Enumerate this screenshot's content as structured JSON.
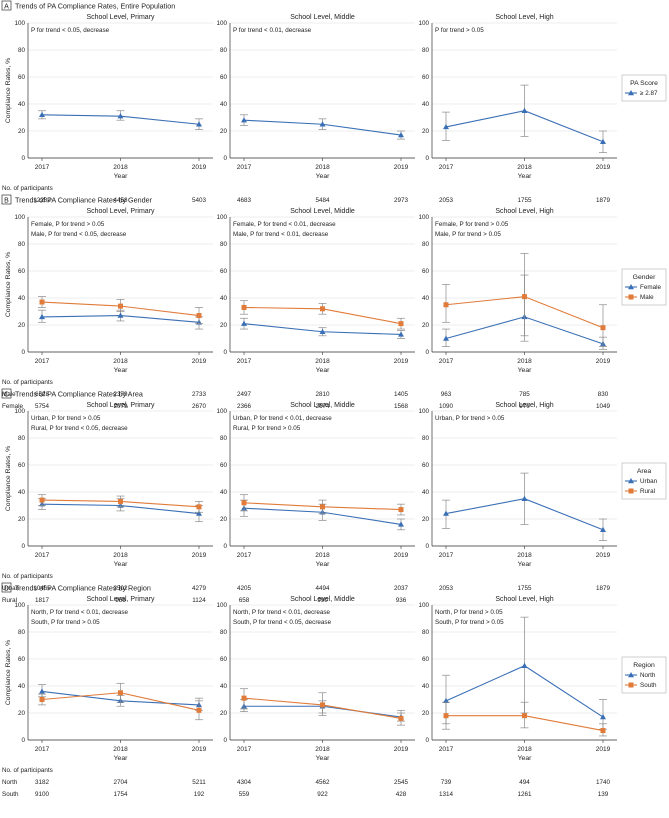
{
  "chart_data": {
    "type": "line",
    "x_tick_labels": [
      "2017",
      "2018",
      "2019"
    ],
    "xlabel": "Year",
    "ylabel": "Compliance Rates, %",
    "ylim": [
      0,
      100
    ],
    "y_ticks": [
      0,
      20,
      40,
      60,
      80,
      100
    ],
    "participants_label": "No. of participants",
    "colors": {
      "primary": "#3a6fb5",
      "secondary": "#e07b39",
      "error_bar": "#8a8a8a",
      "grid": "#dddddd"
    },
    "panels": [
      {
        "letter": "A",
        "title": "Trends of PA Compliance Rates, Entire Population",
        "legend_title": "PA Score",
        "legend": [
          {
            "label": "≥ 2.87",
            "marker": "triangle",
            "color": "#3a6fb5"
          }
        ],
        "subplots": [
          {
            "title": "School Level, Primary",
            "annotations": [
              "P for trend < 0.05, decrease"
            ],
            "series": [
              {
                "name": "≥ 2.87",
                "marker": "triangle",
                "color": "#3a6fb5",
                "values": [
                  32,
                  31,
                  25
                ],
                "err_low": [
                  29,
                  28,
                  21
                ],
                "err_high": [
                  35,
                  35,
                  29
                ]
              }
            ],
            "participants": [
              {
                "label": "",
                "counts": [
                  "12282",
                  "4458",
                  "5403"
                ]
              }
            ]
          },
          {
            "title": "School Level, Middle",
            "annotations": [
              "P for trend < 0.01, decrease"
            ],
            "series": [
              {
                "name": "≥ 2.87",
                "marker": "triangle",
                "color": "#3a6fb5",
                "values": [
                  28,
                  25,
                  17
                ],
                "err_low": [
                  24,
                  21,
                  14
                ],
                "err_high": [
                  32,
                  29,
                  20
                ]
              }
            ],
            "participants": [
              {
                "label": "",
                "counts": [
                  "4683",
                  "5484",
                  "2973"
                ]
              }
            ]
          },
          {
            "title": "School Level, High",
            "annotations": [
              "P for trend > 0.05"
            ],
            "series": [
              {
                "name": "≥ 2.87",
                "marker": "triangle",
                "color": "#3a6fb5",
                "values": [
                  23,
                  35,
                  12
                ],
                "err_low": [
                  13,
                  16,
                  4
                ],
                "err_high": [
                  34,
                  54,
                  20
                ]
              }
            ],
            "participants": [
              {
                "label": "",
                "counts": [
                  "2053",
                  "1755",
                  "1879"
                ]
              }
            ]
          }
        ]
      },
      {
        "letter": "B",
        "title": "Trends of PA Compliance Rates by Gender",
        "legend_title": "Gender",
        "legend": [
          {
            "label": "Female",
            "marker": "triangle",
            "color": "#3a6fb5"
          },
          {
            "label": "Male",
            "marker": "square",
            "color": "#e07b39"
          }
        ],
        "subplots": [
          {
            "title": "School Level, Primary",
            "annotations": [
              "Female, P for trend > 0.05",
              "Male, P for trend < 0.05, decrease"
            ],
            "series": [
              {
                "name": "Female",
                "marker": "triangle",
                "color": "#3a6fb5",
                "values": [
                  26,
                  27,
                  22
                ],
                "err_low": [
                  22,
                  23,
                  17
                ],
                "err_high": [
                  31,
                  31,
                  26
                ]
              },
              {
                "name": "Male",
                "marker": "square",
                "color": "#e07b39",
                "values": [
                  37,
                  34,
                  27
                ],
                "err_low": [
                  33,
                  30,
                  21
                ],
                "err_high": [
                  41,
                  39,
                  33
                ]
              }
            ],
            "participants": [
              {
                "label": "Male",
                "counts": [
                  "6528",
                  "2379",
                  "2733"
                ]
              },
              {
                "label": "Female",
                "counts": [
                  "5754",
                  "2079",
                  "2670"
                ]
              }
            ]
          },
          {
            "title": "School Level, Middle",
            "annotations": [
              "Female, P for trend < 0.01, decrease",
              "Male, P for trend < 0.01, decrease"
            ],
            "series": [
              {
                "name": "Female",
                "marker": "triangle",
                "color": "#3a6fb5",
                "values": [
                  21,
                  15,
                  13
                ],
                "err_low": [
                  17,
                  12,
                  10
                ],
                "err_high": [
                  25,
                  18,
                  16
                ]
              },
              {
                "name": "Male",
                "marker": "square",
                "color": "#e07b39",
                "values": [
                  33,
                  32,
                  21
                ],
                "err_low": [
                  28,
                  28,
                  17
                ],
                "err_high": [
                  38,
                  36,
                  25
                ]
              }
            ],
            "participants": [
              {
                "label": "",
                "counts": [
                  "2497",
                  "2810",
                  "1405"
                ]
              },
              {
                "label": "",
                "counts": [
                  "2366",
                  "2674",
                  "1568"
                ]
              }
            ]
          },
          {
            "title": "School Level, High",
            "annotations": [
              "Female, P for trend > 0.05",
              "Male, P for trend > 0.05"
            ],
            "series": [
              {
                "name": "Female",
                "marker": "triangle",
                "color": "#3a6fb5",
                "values": [
                  10,
                  26,
                  6
                ],
                "err_low": [
                  4,
                  8,
                  2
                ],
                "err_high": [
                  17,
                  57,
                  11
                ]
              },
              {
                "name": "Male",
                "marker": "square",
                "color": "#e07b39",
                "values": [
                  35,
                  41,
                  18
                ],
                "err_low": [
                  22,
                  12,
                  4
                ],
                "err_high": [
                  50,
                  73,
                  35
                ]
              }
            ],
            "participants": [
              {
                "label": "",
                "counts": [
                  "963",
                  "785",
                  "830"
                ]
              },
              {
                "label": "",
                "counts": [
                  "1090",
                  "970",
                  "1049"
                ]
              }
            ]
          }
        ]
      },
      {
        "letter": "C",
        "title": "Trends of PA Compliance Rates by Area",
        "legend_title": "Area",
        "legend": [
          {
            "label": "Urban",
            "marker": "triangle",
            "color": "#3a6fb5"
          },
          {
            "label": "Rural",
            "marker": "square",
            "color": "#e07b39"
          }
        ],
        "subplots": [
          {
            "title": "School Level, Primary",
            "annotations": [
              "Urban, P for trend > 0.05",
              "Rural, P for trend < 0.05, decrease"
            ],
            "series": [
              {
                "name": "Urban",
                "marker": "triangle",
                "color": "#3a6fb5",
                "values": [
                  31,
                  30,
                  24
                ],
                "err_low": [
                  27,
                  26,
                  18
                ],
                "err_high": [
                  35,
                  35,
                  30
                ]
              },
              {
                "name": "Rural",
                "marker": "square",
                "color": "#e07b39",
                "values": [
                  34,
                  33,
                  29
                ],
                "err_low": [
                  30,
                  29,
                  25
                ],
                "err_high": [
                  38,
                  37,
                  33
                ]
              }
            ],
            "participants": [
              {
                "label": "Urban",
                "counts": [
                  "10465",
                  "3502",
                  "4279"
                ]
              },
              {
                "label": "Rural",
                "counts": [
                  "1817",
                  "956",
                  "1124"
                ]
              }
            ]
          },
          {
            "title": "School Level, Middle",
            "annotations": [
              "Urban, P for trend < 0.01, decrease",
              "Rural, P for trend > 0.05"
            ],
            "series": [
              {
                "name": "Urban",
                "marker": "triangle",
                "color": "#3a6fb5",
                "values": [
                  28,
                  25,
                  16
                ],
                "err_low": [
                  22,
                  19,
                  12
                ],
                "err_high": [
                  34,
                  31,
                  20
                ]
              },
              {
                "name": "Rural",
                "marker": "square",
                "color": "#e07b39",
                "values": [
                  32,
                  29,
                  27
                ],
                "err_low": [
                  26,
                  24,
                  23
                ],
                "err_high": [
                  38,
                  34,
                  31
                ]
              }
            ],
            "participants": [
              {
                "label": "",
                "counts": [
                  "4205",
                  "4494",
                  "2037"
                ]
              },
              {
                "label": "",
                "counts": [
                  "658",
                  "990",
                  "936"
                ]
              }
            ]
          },
          {
            "title": "School Level, High",
            "annotations": [
              "Urban, P for trend > 0.05"
            ],
            "series": [
              {
                "name": "Urban",
                "marker": "triangle",
                "color": "#3a6fb5",
                "values": [
                  24,
                  35,
                  12
                ],
                "err_low": [
                  13,
                  16,
                  4
                ],
                "err_high": [
                  34,
                  54,
                  20
                ]
              }
            ],
            "participants": [
              {
                "label": "",
                "counts": [
                  "2053",
                  "1755",
                  "1879"
                ]
              }
            ]
          }
        ]
      },
      {
        "letter": "D",
        "title": "Trends of PA Compliance Rates by Region",
        "legend_title": "Region",
        "legend": [
          {
            "label": "North",
            "marker": "triangle",
            "color": "#3a6fb5"
          },
          {
            "label": "South",
            "marker": "square",
            "color": "#e07b39"
          }
        ],
        "subplots": [
          {
            "title": "School Level, Primary",
            "annotations": [
              "North, P for trend < 0.01, decrease",
              "South, P for trend > 0.05"
            ],
            "series": [
              {
                "name": "North",
                "marker": "triangle",
                "color": "#3a6fb5",
                "values": [
                  36,
                  29,
                  26
                ],
                "err_low": [
                  32,
                  25,
                  22
                ],
                "err_high": [
                  41,
                  33,
                  31
                ]
              },
              {
                "name": "South",
                "marker": "square",
                "color": "#e07b39",
                "values": [
                  30,
                  35,
                  22
                ],
                "err_low": [
                  26,
                  28,
                  15
                ],
                "err_high": [
                  34,
                  42,
                  29
                ]
              }
            ],
            "participants": [
              {
                "label": "North",
                "counts": [
                  "3182",
                  "2704",
                  "5211"
                ]
              },
              {
                "label": "South",
                "counts": [
                  "9100",
                  "1754",
                  "192"
                ]
              }
            ]
          },
          {
            "title": "School Level, Middle",
            "annotations": [
              "North, P for trend < 0.01, decrease",
              "South, P for trend < 0.05, decrease"
            ],
            "series": [
              {
                "name": "North",
                "marker": "triangle",
                "color": "#3a6fb5",
                "values": [
                  25,
                  25,
                  17
                ],
                "err_low": [
                  21,
                  20,
                  14
                ],
                "err_high": [
                  30,
                  29,
                  20
                ]
              },
              {
                "name": "South",
                "marker": "square",
                "color": "#e07b39",
                "values": [
                  31,
                  26,
                  16
                ],
                "err_low": [
                  23,
                  18,
                  11
                ],
                "err_high": [
                  38,
                  35,
                  22
                ]
              }
            ],
            "participants": [
              {
                "label": "",
                "counts": [
                  "4304",
                  "4562",
                  "2545"
                ]
              },
              {
                "label": "",
                "counts": [
                  "559",
                  "922",
                  "428"
                ]
              }
            ]
          },
          {
            "title": "School Level, High",
            "annotations": [
              "North, P for trend > 0.05",
              "South, P for trend > 0.05"
            ],
            "series": [
              {
                "name": "North",
                "marker": "triangle",
                "color": "#3a6fb5",
                "values": [
                  29,
                  55,
                  17
                ],
                "err_low": [
                  12,
                  20,
                  8
                ],
                "err_high": [
                  48,
                  91,
                  30
                ]
              },
              {
                "name": "South",
                "marker": "square",
                "color": "#e07b39",
                "values": [
                  18,
                  18,
                  7
                ],
                "err_low": [
                  8,
                  9,
                  3
                ],
                "err_high": [
                  28,
                  28,
                  12
                ]
              }
            ],
            "participants": [
              {
                "label": "",
                "counts": [
                  "739",
                  "494",
                  "1740"
                ]
              },
              {
                "label": "",
                "counts": [
                  "1314",
                  "1261",
                  "139"
                ]
              }
            ]
          }
        ]
      }
    ]
  }
}
